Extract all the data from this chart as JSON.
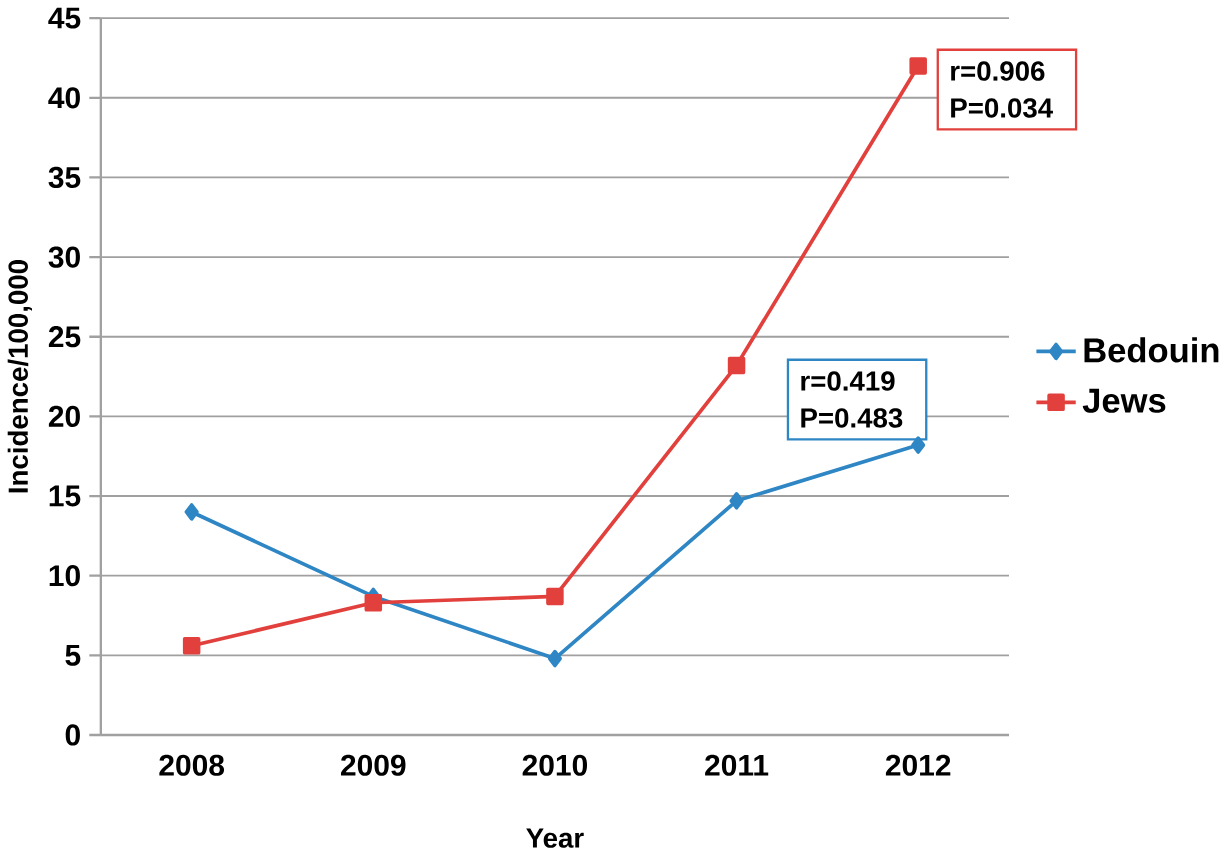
{
  "chart_data": {
    "type": "line",
    "xlabel": "Year",
    "ylabel": "Incidence/100,000",
    "categories": [
      "2008",
      "2009",
      "2010",
      "2011",
      "2012"
    ],
    "series": [
      {
        "name": "Bedouin",
        "color": "#2f86c4",
        "marker": "diamond",
        "values": [
          14.0,
          8.7,
          4.8,
          14.7,
          18.2
        ]
      },
      {
        "name": "Jews",
        "color": "#e2403c",
        "marker": "square",
        "values": [
          5.6,
          8.3,
          8.7,
          23.2,
          42.0
        ]
      }
    ],
    "annotations": [
      {
        "text": "r=0.906 P=0.034",
        "x": "2012",
        "y": 42.0
      },
      {
        "text": "r=0.419 P=0.483",
        "x": "2012",
        "y": 18.2
      }
    ],
    "ylim": [
      0,
      45
    ],
    "yticks": [
      0,
      5,
      10,
      15,
      20,
      25,
      30,
      35,
      40,
      45
    ],
    "grid": "y",
    "legend": "right"
  }
}
